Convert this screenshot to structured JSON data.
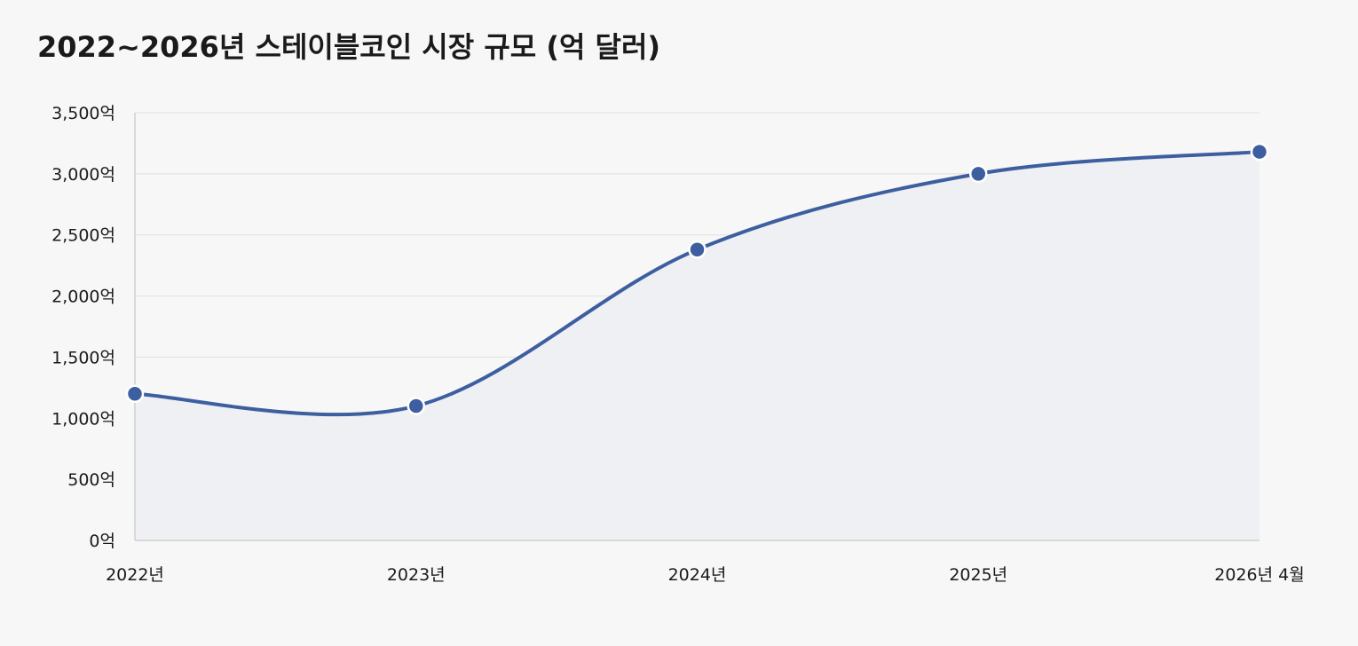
{
  "chart_data": {
    "type": "area",
    "title": "2022~2026년 스테이블코인 시장 규모 (억 달러)",
    "xlabel": "",
    "ylabel": "",
    "categories": [
      "2022년",
      "2023년",
      "2024년",
      "2025년",
      "2026년 4월"
    ],
    "series": [
      {
        "values": [
          1200,
          1100,
          2380,
          3000,
          3180
        ]
      }
    ],
    "ylim": [
      0,
      3500
    ],
    "yticks": [
      0,
      500,
      1000,
      1500,
      2000,
      2500,
      3000,
      3500
    ],
    "ytick_labels": [
      "0억",
      "500억",
      "1,000억",
      "1,500억",
      "2,000억",
      "2,500억",
      "3,000억",
      "3,500억"
    ],
    "grid": true,
    "legend": "none",
    "colors": {
      "line": "#3d5fa0",
      "fill": "#eff0f3",
      "grid": "#e4e4e4",
      "axis": "#cfcfcf",
      "background": "#f7f7f7"
    }
  }
}
